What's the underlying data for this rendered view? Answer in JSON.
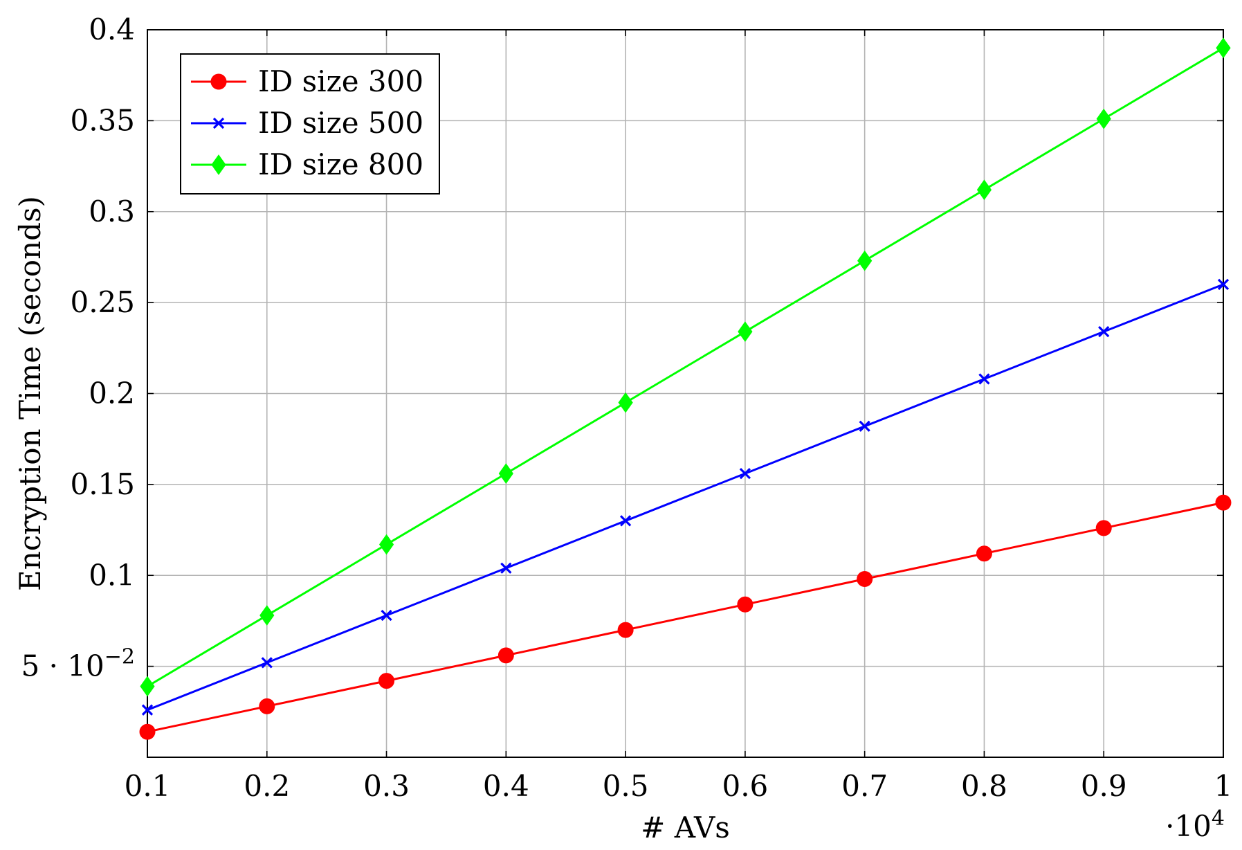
{
  "chart_data": {
    "type": "line",
    "title": "",
    "xlabel": "# AVs",
    "ylabel": "Encryption Time (seconds)",
    "x_multiplier_label": "·10",
    "x_multiplier_exp": "4",
    "x": [
      0.1,
      0.2,
      0.3,
      0.4,
      0.5,
      0.6,
      0.7,
      0.8,
      0.9,
      1
    ],
    "xlim": [
      0.1,
      1
    ],
    "ylim": [
      0.0,
      0.4
    ],
    "x_ticks": [
      {
        "value": 0.1,
        "label": "0.1"
      },
      {
        "value": 0.2,
        "label": "0.2"
      },
      {
        "value": 0.3,
        "label": "0.3"
      },
      {
        "value": 0.4,
        "label": "0.4"
      },
      {
        "value": 0.5,
        "label": "0.5"
      },
      {
        "value": 0.6,
        "label": "0.6"
      },
      {
        "value": 0.7,
        "label": "0.7"
      },
      {
        "value": 0.8,
        "label": "0.8"
      },
      {
        "value": 0.9,
        "label": "0.9"
      },
      {
        "value": 1,
        "label": "1"
      }
    ],
    "y_ticks": [
      {
        "value": 0.05,
        "label": "5 · 10",
        "sup": "−2"
      },
      {
        "value": 0.1,
        "label": "0.1"
      },
      {
        "value": 0.15,
        "label": "0.15"
      },
      {
        "value": 0.2,
        "label": "0.2"
      },
      {
        "value": 0.25,
        "label": "0.25"
      },
      {
        "value": 0.3,
        "label": "0.3"
      },
      {
        "value": 0.35,
        "label": "0.35"
      },
      {
        "value": 0.4,
        "label": "0.4"
      }
    ],
    "grid": true,
    "legend_position": "top-left",
    "series": [
      {
        "name": "ID size 300",
        "color": "#ff0000",
        "marker": "circle",
        "values": [
          0.014,
          0.028,
          0.042,
          0.056,
          0.07,
          0.084,
          0.098,
          0.112,
          0.126,
          0.14
        ]
      },
      {
        "name": "ID size 500",
        "color": "#0000ff",
        "marker": "x",
        "values": [
          0.026,
          0.052,
          0.078,
          0.104,
          0.13,
          0.156,
          0.182,
          0.208,
          0.234,
          0.26
        ]
      },
      {
        "name": "ID size 800",
        "color": "#00ff00",
        "marker": "diamond",
        "values": [
          0.039,
          0.078,
          0.117,
          0.156,
          0.195,
          0.234,
          0.273,
          0.312,
          0.351,
          0.39
        ]
      }
    ]
  }
}
